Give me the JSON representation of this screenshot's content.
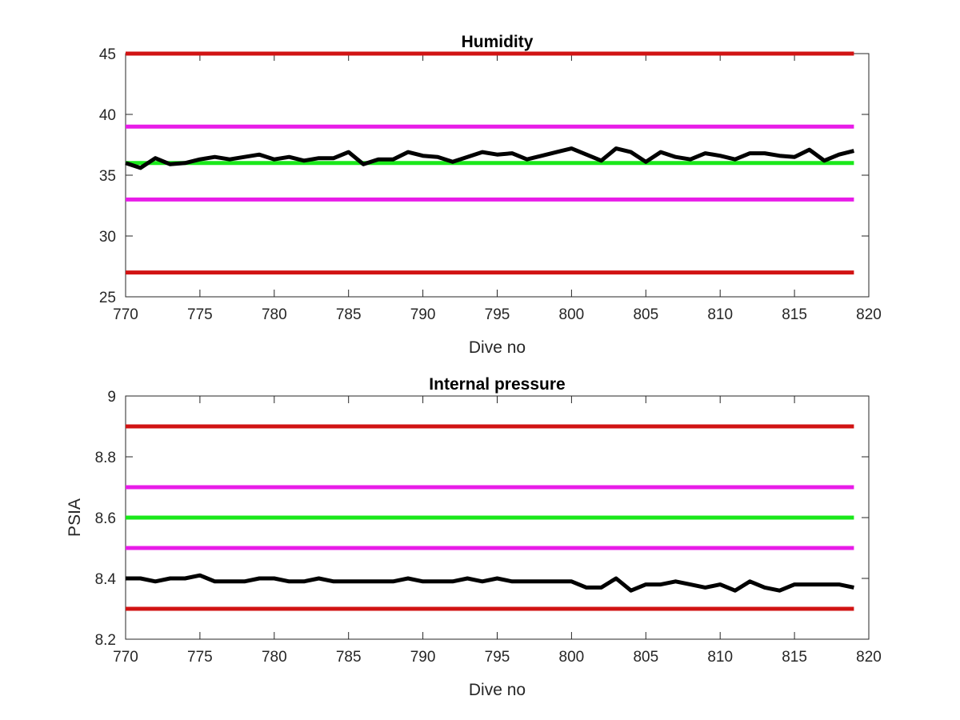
{
  "chart_data": [
    {
      "type": "line",
      "title": "Humidity",
      "xlabel": "Dive no",
      "ylabel": "",
      "xlim": [
        770,
        820
      ],
      "ylim": [
        25,
        45
      ],
      "xticks": [
        770,
        775,
        780,
        785,
        790,
        795,
        800,
        805,
        810,
        815,
        820
      ],
      "yticks": [
        25,
        30,
        35,
        40,
        45
      ],
      "grid": false,
      "reference_lines": [
        {
          "value": 45,
          "color": "#d11313"
        },
        {
          "value": 39,
          "color": "#e81ce8"
        },
        {
          "value": 36,
          "color": "#1ae81a"
        },
        {
          "value": 33,
          "color": "#e81ce8"
        },
        {
          "value": 27,
          "color": "#d11313"
        }
      ],
      "reference_x_range": [
        770,
        819
      ],
      "series": [
        {
          "color": "#000000",
          "x": [
            770,
            771,
            772,
            773,
            774,
            775,
            776,
            777,
            778,
            779,
            780,
            781,
            782,
            783,
            784,
            785,
            786,
            787,
            788,
            789,
            790,
            791,
            792,
            793,
            794,
            795,
            796,
            797,
            798,
            799,
            800,
            801,
            802,
            803,
            804,
            805,
            806,
            807,
            808,
            809,
            810,
            811,
            812,
            813,
            814,
            815,
            816,
            817,
            818,
            819
          ],
          "y": [
            36.0,
            35.6,
            36.4,
            35.9,
            36.0,
            36.3,
            36.5,
            36.3,
            36.5,
            36.7,
            36.3,
            36.5,
            36.2,
            36.4,
            36.4,
            36.9,
            35.9,
            36.3,
            36.3,
            36.9,
            36.6,
            36.5,
            36.1,
            36.5,
            36.9,
            36.7,
            36.8,
            36.3,
            36.6,
            36.9,
            37.2,
            36.7,
            36.2,
            37.2,
            36.9,
            36.1,
            36.9,
            36.5,
            36.3,
            36.8,
            36.6,
            36.3,
            36.8,
            36.8,
            36.6,
            36.5,
            37.1,
            36.2,
            36.7,
            37.0
          ]
        }
      ]
    },
    {
      "type": "line",
      "title": "Internal pressure",
      "xlabel": "Dive no",
      "ylabel": "PSIA",
      "xlim": [
        770,
        820
      ],
      "ylim": [
        8.2,
        9.0
      ],
      "xticks": [
        770,
        775,
        780,
        785,
        790,
        795,
        800,
        805,
        810,
        815,
        820
      ],
      "yticks": [
        8.2,
        8.4,
        8.6,
        8.8,
        9
      ],
      "grid": false,
      "reference_lines": [
        {
          "value": 8.9,
          "color": "#d11313"
        },
        {
          "value": 8.7,
          "color": "#e81ce8"
        },
        {
          "value": 8.6,
          "color": "#1ae81a"
        },
        {
          "value": 8.5,
          "color": "#e81ce8"
        },
        {
          "value": 8.3,
          "color": "#d11313"
        }
      ],
      "reference_x_range": [
        770,
        819
      ],
      "series": [
        {
          "color": "#000000",
          "x": [
            770,
            771,
            772,
            773,
            774,
            775,
            776,
            777,
            778,
            779,
            780,
            781,
            782,
            783,
            784,
            785,
            786,
            787,
            788,
            789,
            790,
            791,
            792,
            793,
            794,
            795,
            796,
            797,
            798,
            799,
            800,
            801,
            802,
            803,
            804,
            805,
            806,
            807,
            808,
            809,
            810,
            811,
            812,
            813,
            814,
            815,
            816,
            817,
            818,
            819
          ],
          "y": [
            8.4,
            8.4,
            8.39,
            8.4,
            8.4,
            8.41,
            8.39,
            8.39,
            8.39,
            8.4,
            8.4,
            8.39,
            8.39,
            8.4,
            8.39,
            8.39,
            8.39,
            8.39,
            8.39,
            8.4,
            8.39,
            8.39,
            8.39,
            8.4,
            8.39,
            8.4,
            8.39,
            8.39,
            8.39,
            8.39,
            8.39,
            8.37,
            8.37,
            8.4,
            8.36,
            8.38,
            8.38,
            8.39,
            8.38,
            8.37,
            8.38,
            8.36,
            8.39,
            8.37,
            8.36,
            8.38,
            8.38,
            8.38,
            8.38,
            8.37
          ]
        }
      ]
    }
  ]
}
